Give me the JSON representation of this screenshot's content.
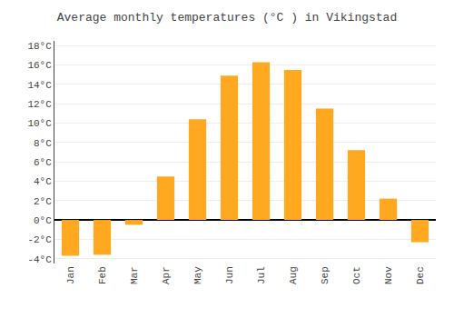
{
  "chart_data": {
    "type": "bar",
    "title": "Average monthly temperatures (°C ) in Vikingstad",
    "categories": [
      "Jan",
      "Feb",
      "Mar",
      "Apr",
      "May",
      "Jun",
      "Jul",
      "Aug",
      "Sep",
      "Oct",
      "Nov",
      "Dec"
    ],
    "values": [
      -3.7,
      -3.6,
      -0.5,
      4.5,
      10.4,
      14.9,
      16.3,
      15.5,
      11.5,
      7.2,
      2.2,
      -2.3
    ],
    "color": "#FFA820",
    "ylim": [
      -4.5,
      18.5
    ],
    "yticks": [
      {
        "value": -4,
        "label": "-4°C"
      },
      {
        "value": -2,
        "label": "-2°C"
      },
      {
        "value": 0,
        "label": "0°C"
      },
      {
        "value": 2,
        "label": "2°C"
      },
      {
        "value": 4,
        "label": "4°C"
      },
      {
        "value": 6,
        "label": "6°C"
      },
      {
        "value": 8,
        "label": "8°C"
      },
      {
        "value": 10,
        "label": "10°C"
      },
      {
        "value": 12,
        "label": "12°C"
      },
      {
        "value": 14,
        "label": "14°C"
      },
      {
        "value": 16,
        "label": "16°C"
      },
      {
        "value": 18,
        "label": "18°C"
      }
    ],
    "grid": true
  }
}
